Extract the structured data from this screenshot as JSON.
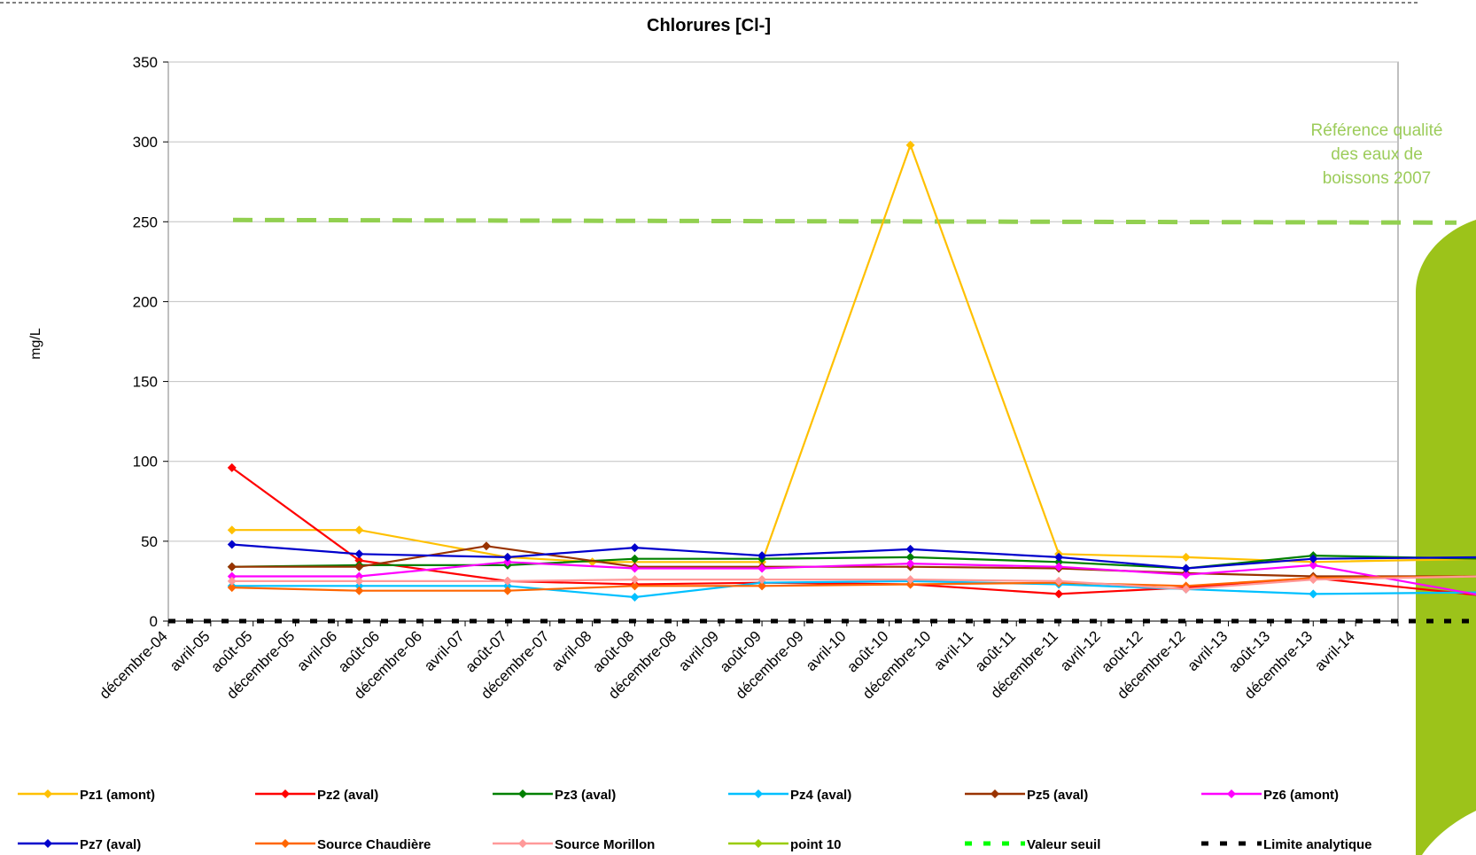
{
  "chart_data": {
    "type": "line",
    "title": "Chlorures [Cl-]",
    "ylabel": "mg/L",
    "xlabel": "",
    "ylim": [
      0,
      350
    ],
    "y_ticks": [
      0,
      50,
      100,
      150,
      200,
      250,
      300,
      350
    ],
    "grid": "horizontal",
    "legend_position": "bottom",
    "categories": [
      "décembre-04",
      "avril-05",
      "août-05",
      "décembre-05",
      "avril-06",
      "août-06",
      "décembre-06",
      "avril-07",
      "août-07",
      "décembre-07",
      "avril-08",
      "août-08",
      "décembre-08",
      "avril-09",
      "août-09",
      "décembre-09",
      "avril-10",
      "août-10",
      "décembre-10",
      "avril-11",
      "août-11",
      "décembre-11",
      "avril-12",
      "août-12",
      "décembre-12",
      "avril-13",
      "août-13",
      "décembre-13",
      "avril-14"
    ],
    "series": [
      {
        "name": "Pz1 (amont)",
        "color": "#ffc000",
        "marker": "diamond",
        "points": [
          [
            1.5,
            57
          ],
          [
            4.5,
            57
          ],
          [
            8,
            40
          ],
          [
            10,
            37
          ],
          [
            14,
            37
          ],
          [
            17.5,
            298
          ],
          [
            21,
            42
          ],
          [
            24,
            40
          ],
          [
            27,
            37
          ],
          [
            31,
            39
          ]
        ]
      },
      {
        "name": "Pz2 (aval)",
        "color": "#ff0000",
        "marker": "diamond",
        "points": [
          [
            1.5,
            96
          ],
          [
            4.5,
            38
          ],
          [
            8,
            25
          ],
          [
            11,
            23
          ],
          [
            14,
            24
          ],
          [
            17.5,
            23
          ],
          [
            21,
            17
          ],
          [
            24,
            21
          ],
          [
            27,
            27
          ],
          [
            31,
            16
          ]
        ]
      },
      {
        "name": "Pz3 (aval)",
        "color": "#008000",
        "marker": "diamond",
        "points": [
          [
            1.5,
            34
          ],
          [
            4.5,
            35
          ],
          [
            8,
            35
          ],
          [
            11,
            39
          ],
          [
            14,
            39
          ],
          [
            17.5,
            40
          ],
          [
            21,
            37
          ],
          [
            24,
            33
          ],
          [
            27,
            41
          ],
          [
            31,
            39
          ]
        ]
      },
      {
        "name": "Pz4 (aval)",
        "color": "#00c0ff",
        "marker": "diamond",
        "points": [
          [
            1.5,
            22
          ],
          [
            4.5,
            22
          ],
          [
            8,
            22
          ],
          [
            11,
            15
          ],
          [
            14,
            24
          ],
          [
            17.5,
            25
          ],
          [
            21,
            23
          ],
          [
            24,
            20
          ],
          [
            27,
            17
          ],
          [
            31,
            18
          ]
        ]
      },
      {
        "name": "Pz5 (aval)",
        "color": "#993300",
        "marker": "diamond",
        "points": [
          [
            1.5,
            34
          ],
          [
            4.5,
            34
          ],
          [
            7.5,
            47
          ],
          [
            11,
            34
          ],
          [
            14,
            34
          ],
          [
            17.5,
            34
          ],
          [
            21,
            33
          ],
          [
            24,
            30
          ],
          [
            27,
            28
          ],
          [
            31,
            28
          ]
        ]
      },
      {
        "name": "Pz6 (amont)",
        "color": "#ff00ff",
        "marker": "diamond",
        "points": [
          [
            1.5,
            28
          ],
          [
            4.5,
            28
          ],
          [
            8,
            37
          ],
          [
            11,
            33
          ],
          [
            14,
            33
          ],
          [
            17.5,
            36
          ],
          [
            21,
            34
          ],
          [
            24,
            29
          ],
          [
            27,
            35
          ],
          [
            31,
            16
          ]
        ]
      },
      {
        "name": "Pz7 (aval)",
        "color": "#0000cc",
        "marker": "diamond",
        "points": [
          [
            1.5,
            48
          ],
          [
            4.5,
            42
          ],
          [
            8,
            40
          ],
          [
            11,
            46
          ],
          [
            14,
            41
          ],
          [
            17.5,
            45
          ],
          [
            21,
            40
          ],
          [
            24,
            33
          ],
          [
            27,
            39
          ],
          [
            31,
            40
          ]
        ]
      },
      {
        "name": "Source Chaudière",
        "color": "#ff6600",
        "marker": "diamond",
        "points": [
          [
            1.5,
            21
          ],
          [
            4.5,
            19
          ],
          [
            8,
            19
          ],
          [
            11,
            22
          ],
          [
            14,
            22
          ],
          [
            17.5,
            23
          ],
          [
            21,
            24
          ],
          [
            24,
            22
          ],
          [
            27,
            27
          ],
          [
            31,
            28
          ]
        ]
      },
      {
        "name": "Source Morillon",
        "color": "#ff9999",
        "marker": "diamond",
        "points": [
          [
            1.5,
            25
          ],
          [
            4.5,
            25
          ],
          [
            8,
            25
          ],
          [
            11,
            26
          ],
          [
            14,
            26
          ],
          [
            17.5,
            26
          ],
          [
            21,
            25
          ],
          [
            24,
            20
          ],
          [
            27,
            26
          ],
          [
            31,
            28
          ]
        ]
      },
      {
        "name": "point 10",
        "color": "#99cc00",
        "marker": "diamond",
        "points": []
      },
      {
        "name": "Valeur seuil",
        "color": "#00ff00",
        "marker": "none",
        "dashed": true,
        "points": []
      },
      {
        "name": "Limite analytique",
        "color": "#000000",
        "marker": "none",
        "dashed": true,
        "points": [
          [
            0,
            0
          ],
          [
            31,
            0
          ]
        ]
      }
    ],
    "reference_line": {
      "value": 250,
      "color": "#92d050",
      "label_lines": [
        "Référence qualité",
        "des eaux de",
        "boissons 2007"
      ]
    }
  }
}
